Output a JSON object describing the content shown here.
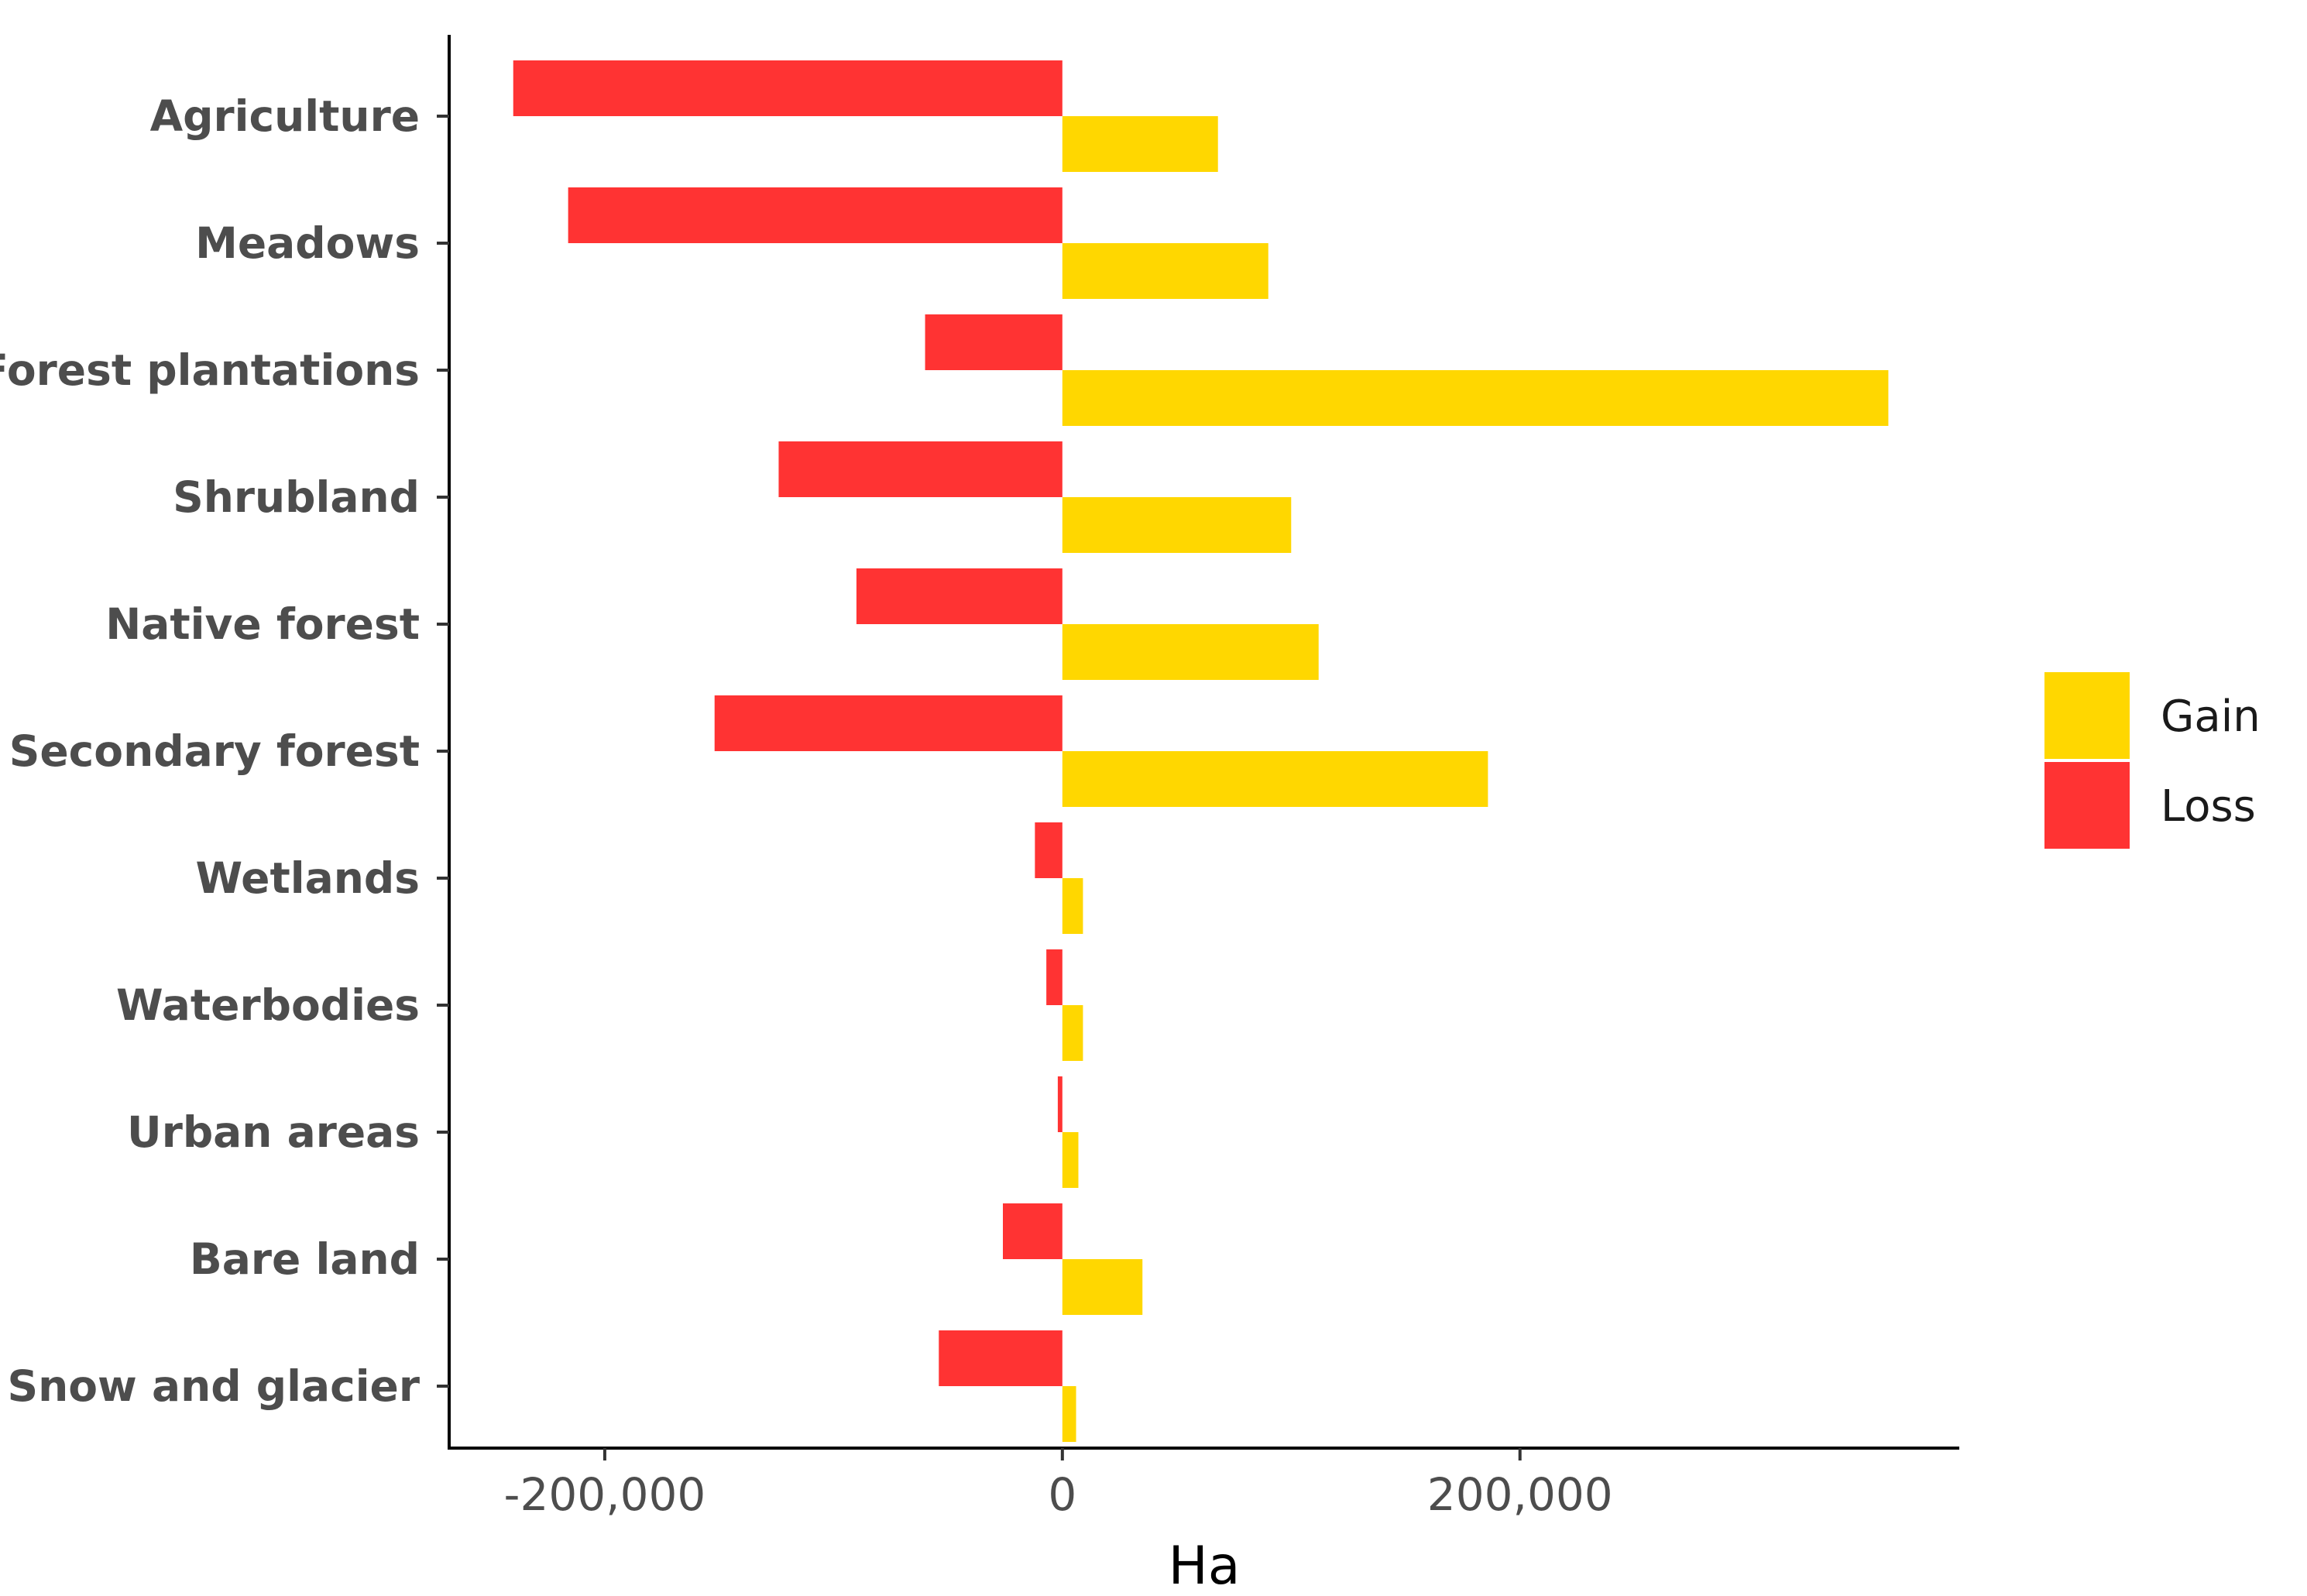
{
  "chart_data": {
    "type": "bar",
    "orientation": "horizontal",
    "categories": [
      "Agriculture",
      "Meadows",
      "Forest plantations",
      "Shrubland",
      "Native forest",
      "Secondary forest",
      "Wetlands",
      "Waterbodies",
      "Urban areas",
      "Bare land",
      "Snow and glacier"
    ],
    "series": [
      {
        "name": "Loss",
        "color": "#ff3333",
        "values": [
          -240000,
          -216000,
          -60000,
          -124000,
          -90000,
          -152000,
          -12000,
          -7000,
          -2000,
          -26000,
          -54000
        ]
      },
      {
        "name": "Gain",
        "color": "#ffd700",
        "values": [
          68000,
          90000,
          361000,
          100000,
          112000,
          186000,
          9000,
          9000,
          7000,
          35000,
          6000
        ]
      }
    ],
    "xlabel": "Ha",
    "ylabel": "",
    "xlim": [
      -268000,
      392000
    ],
    "xticks": [
      -200000,
      0,
      200000
    ],
    "xtick_labels": [
      "-200,000",
      "0",
      "200,000"
    ],
    "legend": {
      "position": "right",
      "order": [
        "Gain",
        "Loss"
      ]
    },
    "grid": false
  }
}
